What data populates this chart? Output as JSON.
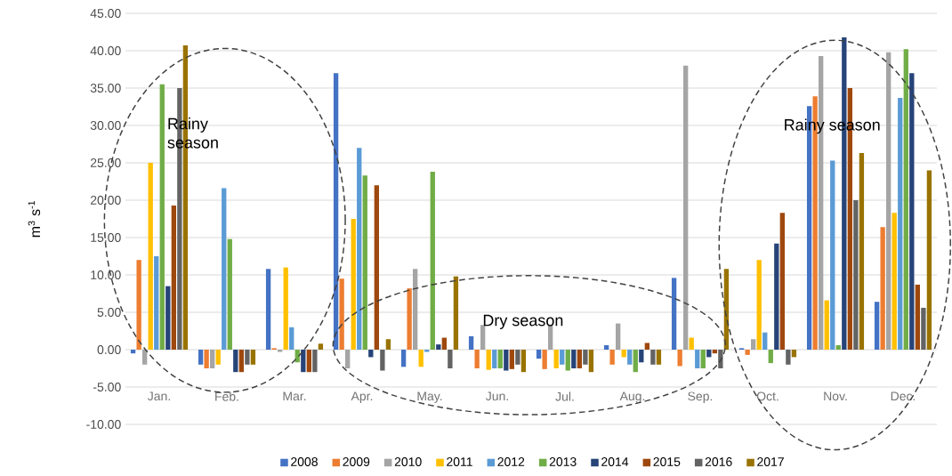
{
  "chart_data": {
    "type": "bar",
    "ylabel": "m$^{3}$ s$^{-1}$",
    "categories": [
      "Jan.",
      "Feb.",
      "Mar.",
      "Apr.",
      "May.",
      "Jun.",
      "Jul.",
      "Aug.",
      "Sep.",
      "Oct.",
      "Nov.",
      "Dec."
    ],
    "series": [
      {
        "name": "2008",
        "color": "#4472c4",
        "values": [
          -0.5,
          -2,
          10.8,
          37,
          -2.3,
          1.8,
          -1.2,
          0.6,
          9.6,
          0.2,
          32.6,
          6.4
        ]
      },
      {
        "name": "2009",
        "color": "#ed7d31",
        "values": [
          12,
          -2.5,
          0.2,
          9.5,
          8.2,
          -2.5,
          -2.6,
          -2,
          -2.2,
          -0.7,
          33.9,
          16.4
        ]
      },
      {
        "name": "2010",
        "color": "#a5a5a5",
        "values": [
          -2,
          -2.5,
          -0.3,
          -2.5,
          10.8,
          3.3,
          3.3,
          3.5,
          38,
          1.4,
          39.3,
          39.8
        ]
      },
      {
        "name": "2011",
        "color": "#ffc000",
        "values": [
          25,
          -2,
          11,
          17.5,
          -2.3,
          -2.7,
          -2.5,
          -1,
          1.6,
          12,
          6.6,
          18.3
        ]
      },
      {
        "name": "2012",
        "color": "#5b9bd5",
        "values": [
          12.5,
          21.6,
          3,
          27,
          -0.3,
          -2.5,
          -2,
          -2,
          -2.5,
          2.3,
          25.3,
          33.7
        ]
      },
      {
        "name": "2013",
        "color": "#70ad47",
        "values": [
          35.5,
          14.8,
          -1.7,
          23.3,
          23.8,
          -2.5,
          -2.8,
          -3,
          -2.5,
          -1.8,
          0.6,
          40.2
        ]
      },
      {
        "name": "2014",
        "color": "#264478",
        "values": [
          8.5,
          -3,
          -3,
          -1,
          0.7,
          -2.8,
          -2.5,
          -1.7,
          -1,
          14.2,
          41.8,
          37
        ]
      },
      {
        "name": "2015",
        "color": "#9e480e",
        "values": [
          19.3,
          -3,
          -3,
          22,
          1.6,
          -2.6,
          -2.5,
          0.9,
          -0.5,
          18.3,
          35,
          8.7
        ]
      },
      {
        "name": "2016",
        "color": "#636363",
        "values": [
          35,
          -2,
          -3,
          -2.8,
          -2.5,
          -2,
          -2,
          -2,
          -2.5,
          -2,
          20,
          5.6
        ]
      },
      {
        "name": "2017",
        "color": "#997300",
        "values": [
          40.7,
          -2,
          0.8,
          1.4,
          9.8,
          -3,
          -3,
          -2,
          10.8,
          -1,
          26.3,
          24
        ]
      }
    ],
    "ylim": [
      -10,
      45
    ],
    "yticks": [
      {
        "value": -10,
        "label": "-10.00"
      },
      {
        "value": -5,
        "label": "-5.00"
      },
      {
        "value": 0,
        "label": "0.00"
      },
      {
        "value": 5,
        "label": "5.00"
      },
      {
        "value": 10,
        "label": "10.00"
      },
      {
        "value": 15,
        "label": "15.00"
      },
      {
        "value": 20,
        "label": "20.00"
      },
      {
        "value": 25,
        "label": "25.00"
      },
      {
        "value": 30,
        "label": "30.00"
      },
      {
        "value": 35,
        "label": "35.00"
      },
      {
        "value": 40,
        "label": "40.00"
      },
      {
        "value": 45,
        "label": "45.00"
      }
    ],
    "grid": "y",
    "legend": "bottom",
    "annotations": [
      "Rainy season",
      "Dry season",
      "Rainy season"
    ]
  }
}
